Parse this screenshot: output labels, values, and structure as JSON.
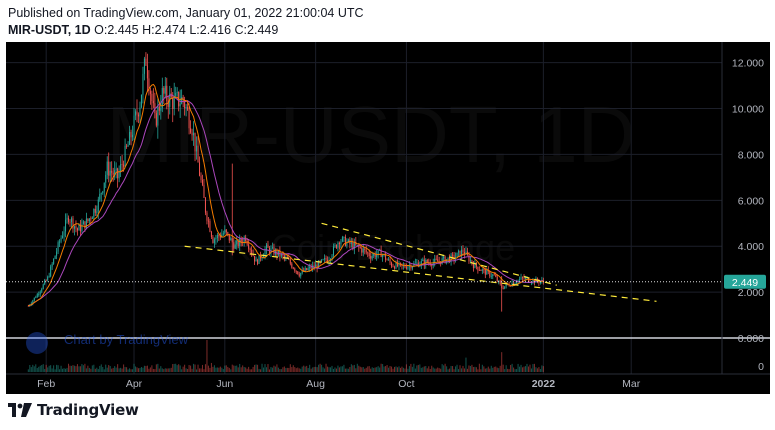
{
  "header": {
    "published_line": "Published on TradingView.com, January 01, 2022 21:00:04 UTC",
    "symbol": "MIR-USDT, 1D",
    "ohlc": "O:2.445 H:2.474 L:2.416 C:2.449"
  },
  "watermark": {
    "symbol": "MIR-USDT, 1D",
    "exchange": "KuCoin Exchange"
  },
  "inline_logo": {
    "text": "Chart by TradingView"
  },
  "footer": {
    "brand": "TradingView"
  },
  "colors": {
    "background": "#000000",
    "up_candle": "#26a69a",
    "down_candle": "#ef5350",
    "ma_fast": "#f57c00",
    "ma_slow": "#ab47bc",
    "trendline": "#ffeb3b",
    "price_label_bg": "#26a69a",
    "axis_text": "#b2b5be"
  },
  "chart_data": {
    "type": "candlestick",
    "title": "MIR-USDT, 1D",
    "last_price": 2.449,
    "last_price_label": "2.449",
    "price_axis": {
      "ticks": [
        "12.000",
        "10.000",
        "8.000",
        "6.000",
        "4.000",
        "2.000",
        "0.000"
      ],
      "ylim": [
        0,
        12.9
      ]
    },
    "volume_axis": {
      "ticks": [
        "0"
      ]
    },
    "time_axis": {
      "ticks": [
        "Feb",
        "Apr",
        "Jun",
        "Aug",
        "Oct",
        "2022",
        "Mar"
      ],
      "tick_dates": [
        "2021-02-01",
        "2021-04-01",
        "2021-06-01",
        "2021-08-01",
        "2021-10-01",
        "2022-01-01",
        "2022-03-01"
      ],
      "xlim": [
        "2021-01-05",
        "2022-05-01"
      ]
    },
    "price_path": [
      [
        "2021-01-20",
        1.4
      ],
      [
        "2021-01-26",
        1.9
      ],
      [
        "2021-02-02",
        2.6
      ],
      [
        "2021-02-10",
        4.2
      ],
      [
        "2021-02-16",
        5.3
      ],
      [
        "2021-02-22",
        4.7
      ],
      [
        "2021-03-01",
        5.1
      ],
      [
        "2021-03-08",
        5.9
      ],
      [
        "2021-03-14",
        7.4
      ],
      [
        "2021-03-21",
        7.0
      ],
      [
        "2021-03-29",
        8.6
      ],
      [
        "2021-04-05",
        10.3
      ],
      [
        "2021-04-09",
        12.2
      ],
      [
        "2021-04-15",
        9.4
      ],
      [
        "2021-04-20",
        10.6
      ],
      [
        "2021-04-28",
        10.3
      ],
      [
        "2021-05-04",
        10.4
      ],
      [
        "2021-05-10",
        9.2
      ],
      [
        "2021-05-14",
        7.6
      ],
      [
        "2021-05-19",
        5.6
      ],
      [
        "2021-05-24",
        4.3
      ],
      [
        "2021-06-01",
        4.6
      ],
      [
        "2021-06-08",
        4.0
      ],
      [
        "2021-06-15",
        4.4
      ],
      [
        "2021-06-22",
        3.3
      ],
      [
        "2021-06-29",
        3.9
      ],
      [
        "2021-07-06",
        3.7
      ],
      [
        "2021-07-13",
        3.4
      ],
      [
        "2021-07-21",
        2.8
      ],
      [
        "2021-07-27",
        3.0
      ],
      [
        "2021-08-03",
        3.2
      ],
      [
        "2021-08-10",
        3.5
      ],
      [
        "2021-08-17",
        4.3
      ],
      [
        "2021-08-24",
        4.1
      ],
      [
        "2021-08-31",
        3.9
      ],
      [
        "2021-09-07",
        3.6
      ],
      [
        "2021-09-14",
        3.7
      ],
      [
        "2021-09-21",
        3.2
      ],
      [
        "2021-09-28",
        3.1
      ],
      [
        "2021-10-05",
        3.2
      ],
      [
        "2021-10-12",
        3.3
      ],
      [
        "2021-10-19",
        3.3
      ],
      [
        "2021-10-26",
        3.4
      ],
      [
        "2021-11-02",
        3.5
      ],
      [
        "2021-11-08",
        3.8
      ],
      [
        "2021-11-15",
        3.2
      ],
      [
        "2021-11-22",
        2.9
      ],
      [
        "2021-11-29",
        2.7
      ],
      [
        "2021-12-04",
        2.2
      ],
      [
        "2021-12-11",
        2.4
      ],
      [
        "2021-12-18",
        2.6
      ],
      [
        "2021-12-25",
        2.5
      ],
      [
        "2022-01-01",
        2.449
      ]
    ],
    "spikes": [
      {
        "date": "2021-06-06",
        "high": 7.6,
        "low": 3.6
      },
      {
        "date": "2021-12-04",
        "high": 2.7,
        "low": 1.15
      }
    ],
    "volume_peaks": [
      {
        "date": "2021-05-20",
        "relative": 1.0
      },
      {
        "date": "2021-12-04",
        "relative": 0.62
      },
      {
        "date": "2021-11-10",
        "relative": 0.45
      }
    ],
    "trendlines": [
      {
        "from": [
          "2021-08-05",
          5.0
        ],
        "to": [
          "2022-01-10",
          2.3
        ]
      },
      {
        "from": [
          "2021-05-05",
          4.0
        ],
        "to": [
          "2022-03-18",
          1.6
        ]
      }
    ]
  }
}
